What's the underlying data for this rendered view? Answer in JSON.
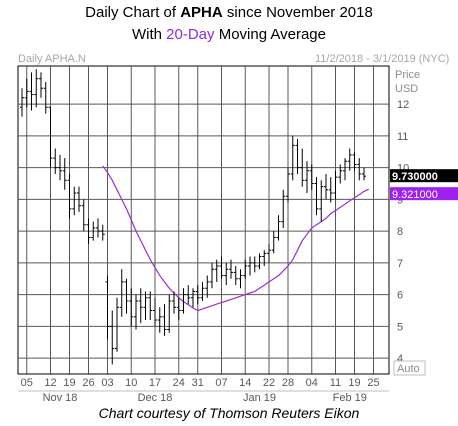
{
  "title": {
    "prefix": "Daily Chart of ",
    "ticker": "APHA",
    "suffix": " since November 2018"
  },
  "subtitle": {
    "prefix": "With ",
    "ma_label": "20-Day",
    "suffix": " Moving Average"
  },
  "symbol_label": "Daily APHA.N",
  "date_range": "11/2/2018 - 3/1/2019 (NYC)",
  "axis_unit": [
    "Price",
    "USD"
  ],
  "auto_label": "Auto",
  "credit": "Chart courtesy of Thomson Reuters Eikon",
  "colors": {
    "price_bars": "#000000",
    "moving_average": "#9b30d9",
    "grid": "#595959",
    "last_price_box": "#000000",
    "ma_value_box": "#a020f0"
  },
  "chart_data": {
    "type": "ohlc",
    "ylim": [
      3.5,
      13.2
    ],
    "yticks": [
      4,
      5,
      6,
      7,
      8,
      9,
      10,
      11,
      12
    ],
    "grid": true,
    "xticks": [
      {
        "label": "05",
        "i": 1
      },
      {
        "label": "12",
        "i": 6
      },
      {
        "label": "19",
        "i": 10
      },
      {
        "label": "26",
        "i": 14
      },
      {
        "label": "03",
        "i": 18
      },
      {
        "label": "10",
        "i": 23
      },
      {
        "label": "17",
        "i": 28
      },
      {
        "label": "24",
        "i": 33
      },
      {
        "label": "31",
        "i": 37
      },
      {
        "label": "07",
        "i": 42
      },
      {
        "label": "14",
        "i": 47
      },
      {
        "label": "22",
        "i": 52
      },
      {
        "label": "28",
        "i": 56
      },
      {
        "label": "04",
        "i": 61
      },
      {
        "label": "11",
        "i": 66
      },
      {
        "label": "19",
        "i": 70
      },
      {
        "label": "25",
        "i": 74
      }
    ],
    "month_labels": [
      {
        "label": "Nov 18",
        "i": 8
      },
      {
        "label": "Dec 18",
        "i": 28
      },
      {
        "label": "Jan 19",
        "i": 50
      },
      {
        "label": "Feb 19",
        "i": 69
      }
    ],
    "last_price": "9.730000",
    "ma_value": "9.321000",
    "bars": [
      [
        11.9,
        12.5,
        11.6,
        12.2
      ],
      [
        12.2,
        12.8,
        11.9,
        12.4
      ],
      [
        12.4,
        13.0,
        11.8,
        12.3
      ],
      [
        12.3,
        13.1,
        11.9,
        12.8
      ],
      [
        12.8,
        13.0,
        12.2,
        12.5
      ],
      [
        12.5,
        12.7,
        11.7,
        11.9
      ],
      [
        11.9,
        11.9,
        10.0,
        10.3
      ],
      [
        10.3,
        10.6,
        9.8,
        10.0
      ],
      [
        10.0,
        10.4,
        9.6,
        9.9
      ],
      [
        9.9,
        10.3,
        9.3,
        9.6
      ],
      [
        9.6,
        9.8,
        8.4,
        8.7
      ],
      [
        8.7,
        9.4,
        8.5,
        9.2
      ],
      [
        9.2,
        9.4,
        8.6,
        8.8
      ],
      [
        8.8,
        9.0,
        8.0,
        8.2
      ],
      [
        8.2,
        8.4,
        7.6,
        7.8
      ],
      [
        7.8,
        8.3,
        7.7,
        8.1
      ],
      [
        8.1,
        8.4,
        7.8,
        8.0
      ],
      [
        8.0,
        8.2,
        7.7,
        7.9
      ],
      [
        6.4,
        6.6,
        4.6,
        5.0
      ],
      [
        5.0,
        5.5,
        3.8,
        4.3
      ],
      [
        4.3,
        5.9,
        4.2,
        5.6
      ],
      [
        5.6,
        6.8,
        5.3,
        6.4
      ],
      [
        6.4,
        6.5,
        5.4,
        5.8
      ],
      [
        5.8,
        6.2,
        5.0,
        5.3
      ],
      [
        5.3,
        6.0,
        4.9,
        5.8
      ],
      [
        5.8,
        6.2,
        5.1,
        5.6
      ],
      [
        5.6,
        6.1,
        5.2,
        5.9
      ],
      [
        5.9,
        6.1,
        5.2,
        5.5
      ],
      [
        5.5,
        5.9,
        5.0,
        5.2
      ],
      [
        5.2,
        5.6,
        4.8,
        5.3
      ],
      [
        5.3,
        5.7,
        4.7,
        4.9
      ],
      [
        4.9,
        6.0,
        4.8,
        5.8
      ],
      [
        5.8,
        6.1,
        5.4,
        5.6
      ],
      [
        5.6,
        5.9,
        5.2,
        5.5
      ],
      [
        5.5,
        6.2,
        5.4,
        6.0
      ],
      [
        6.0,
        6.3,
        5.7,
        5.9
      ],
      [
        5.9,
        6.2,
        5.6,
        6.1
      ],
      [
        6.1,
        6.3,
        5.7,
        5.9
      ],
      [
        5.9,
        6.4,
        5.8,
        6.2
      ],
      [
        6.2,
        6.6,
        5.9,
        6.4
      ],
      [
        6.4,
        7.0,
        6.2,
        6.8
      ],
      [
        6.8,
        7.1,
        6.4,
        6.9
      ],
      [
        6.9,
        7.2,
        6.5,
        6.6
      ],
      [
        6.6,
        7.0,
        6.3,
        6.8
      ],
      [
        6.8,
        7.1,
        6.5,
        6.7
      ],
      [
        6.7,
        6.9,
        6.3,
        6.5
      ],
      [
        6.5,
        6.8,
        6.2,
        6.6
      ],
      [
        6.6,
        7.1,
        6.5,
        6.9
      ],
      [
        6.9,
        7.2,
        6.6,
        7.0
      ],
      [
        7.0,
        7.2,
        6.7,
        6.9
      ],
      [
        6.9,
        7.3,
        6.8,
        7.2
      ],
      [
        7.2,
        7.4,
        6.9,
        7.3
      ],
      [
        7.3,
        7.6,
        7.0,
        7.4
      ],
      [
        7.4,
        8.0,
        7.3,
        7.8
      ],
      [
        7.8,
        8.5,
        7.7,
        8.3
      ],
      [
        8.3,
        9.3,
        8.1,
        9.1
      ],
      [
        9.1,
        10.0,
        8.9,
        9.8
      ],
      [
        9.8,
        11.0,
        9.6,
        10.7
      ],
      [
        10.7,
        10.9,
        9.8,
        10.0
      ],
      [
        10.0,
        10.6,
        9.4,
        9.6
      ],
      [
        9.6,
        10.2,
        9.2,
        9.9
      ],
      [
        9.9,
        10.1,
        9.3,
        9.5
      ],
      [
        9.5,
        9.7,
        8.5,
        8.7
      ],
      [
        8.7,
        9.6,
        8.3,
        9.4
      ],
      [
        9.4,
        9.8,
        9.0,
        9.3
      ],
      [
        9.3,
        9.7,
        8.9,
        9.2
      ],
      [
        9.2,
        9.9,
        9.0,
        9.7
      ],
      [
        9.7,
        10.1,
        9.5,
        9.9
      ],
      [
        9.9,
        10.3,
        9.6,
        10.2
      ],
      [
        10.2,
        10.6,
        9.9,
        10.4
      ],
      [
        10.4,
        10.5,
        9.9,
        10.1
      ],
      [
        10.1,
        10.3,
        9.6,
        9.8
      ],
      [
        9.8,
        10.0,
        9.6,
        9.73
      ]
    ],
    "moving_average": [
      {
        "i": 17,
        "v": 10.05
      },
      {
        "i": 18,
        "v": 9.85
      },
      {
        "i": 19,
        "v": 9.6
      },
      {
        "i": 20,
        "v": 9.3
      },
      {
        "i": 21,
        "v": 9.0
      },
      {
        "i": 22,
        "v": 8.7
      },
      {
        "i": 23,
        "v": 8.35
      },
      {
        "i": 24,
        "v": 8.0
      },
      {
        "i": 25,
        "v": 7.7
      },
      {
        "i": 26,
        "v": 7.4
      },
      {
        "i": 27,
        "v": 7.1
      },
      {
        "i": 28,
        "v": 6.85
      },
      {
        "i": 29,
        "v": 6.6
      },
      {
        "i": 30,
        "v": 6.4
      },
      {
        "i": 31,
        "v": 6.2
      },
      {
        "i": 32,
        "v": 6.05
      },
      {
        "i": 33,
        "v": 5.9
      },
      {
        "i": 34,
        "v": 5.78
      },
      {
        "i": 35,
        "v": 5.68
      },
      {
        "i": 36,
        "v": 5.58
      },
      {
        "i": 37,
        "v": 5.5
      },
      {
        "i": 38,
        "v": 5.55
      },
      {
        "i": 39,
        "v": 5.6
      },
      {
        "i": 40,
        "v": 5.65
      },
      {
        "i": 41,
        "v": 5.7
      },
      {
        "i": 42,
        "v": 5.75
      },
      {
        "i": 43,
        "v": 5.8
      },
      {
        "i": 44,
        "v": 5.85
      },
      {
        "i": 45,
        "v": 5.9
      },
      {
        "i": 46,
        "v": 5.95
      },
      {
        "i": 47,
        "v": 6.0
      },
      {
        "i": 48,
        "v": 6.05
      },
      {
        "i": 49,
        "v": 6.1
      },
      {
        "i": 50,
        "v": 6.2
      },
      {
        "i": 51,
        "v": 6.3
      },
      {
        "i": 52,
        "v": 6.4
      },
      {
        "i": 53,
        "v": 6.5
      },
      {
        "i": 54,
        "v": 6.6
      },
      {
        "i": 55,
        "v": 6.75
      },
      {
        "i": 56,
        "v": 6.9
      },
      {
        "i": 57,
        "v": 7.1
      },
      {
        "i": 58,
        "v": 7.4
      },
      {
        "i": 59,
        "v": 7.7
      },
      {
        "i": 60,
        "v": 7.9
      },
      {
        "i": 61,
        "v": 8.1
      },
      {
        "i": 62,
        "v": 8.2
      },
      {
        "i": 63,
        "v": 8.3
      },
      {
        "i": 64,
        "v": 8.4
      },
      {
        "i": 65,
        "v": 8.55
      },
      {
        "i": 66,
        "v": 8.65
      },
      {
        "i": 67,
        "v": 8.75
      },
      {
        "i": 68,
        "v": 8.85
      },
      {
        "i": 69,
        "v": 8.95
      },
      {
        "i": 70,
        "v": 9.05
      },
      {
        "i": 71,
        "v": 9.15
      },
      {
        "i": 72,
        "v": 9.25
      },
      {
        "i": 73,
        "v": 9.32
      }
    ]
  }
}
